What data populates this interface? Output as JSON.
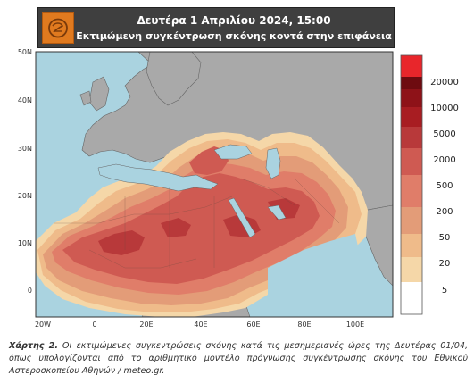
{
  "header": {
    "line1": "Δευτέρα 1 Απριλίου 2024, 15:00",
    "line2": "Εκτιμώμενη συγκέντρωση σκόνης κοντά στην επιφάνεια"
  },
  "axes": {
    "lat_labels": [
      "50N",
      "40N",
      "30N",
      "20N",
      "10N",
      "0"
    ],
    "lon_labels": [
      "20W",
      "0",
      "20E",
      "40E",
      "60E",
      "80E",
      "100E"
    ]
  },
  "legend": {
    "labels": [
      "20000",
      "10000",
      "5000",
      "2000",
      "500",
      "200",
      "50",
      "20",
      "5"
    ],
    "colors": [
      "#e8262b",
      "#6e0b10",
      "#8e1218",
      "#a81d22",
      "#b8393a",
      "#cf5a52",
      "#e07d69",
      "#e39c78",
      "#efbb8a",
      "#f5d7a8",
      "#ffffff"
    ]
  },
  "map_colors": {
    "ocean": "#aad3e0",
    "land": "#a9a9a9",
    "border": "#555555"
  },
  "caption": {
    "label": "Χάρτης 2.",
    "text": " Οι εκτιμώμενες συγκεντρώσεις σκόνης κατά τις μεσημεριανές ώρες της Δευτέρας 01/04, όπως υπολογίζονται από το αριθμητικό μοντέλο πρόγνωσης συγκέντρωσης σκόνης του Εθνικού Αστεροσκοπείου Αθηνών / meteo.gr."
  }
}
